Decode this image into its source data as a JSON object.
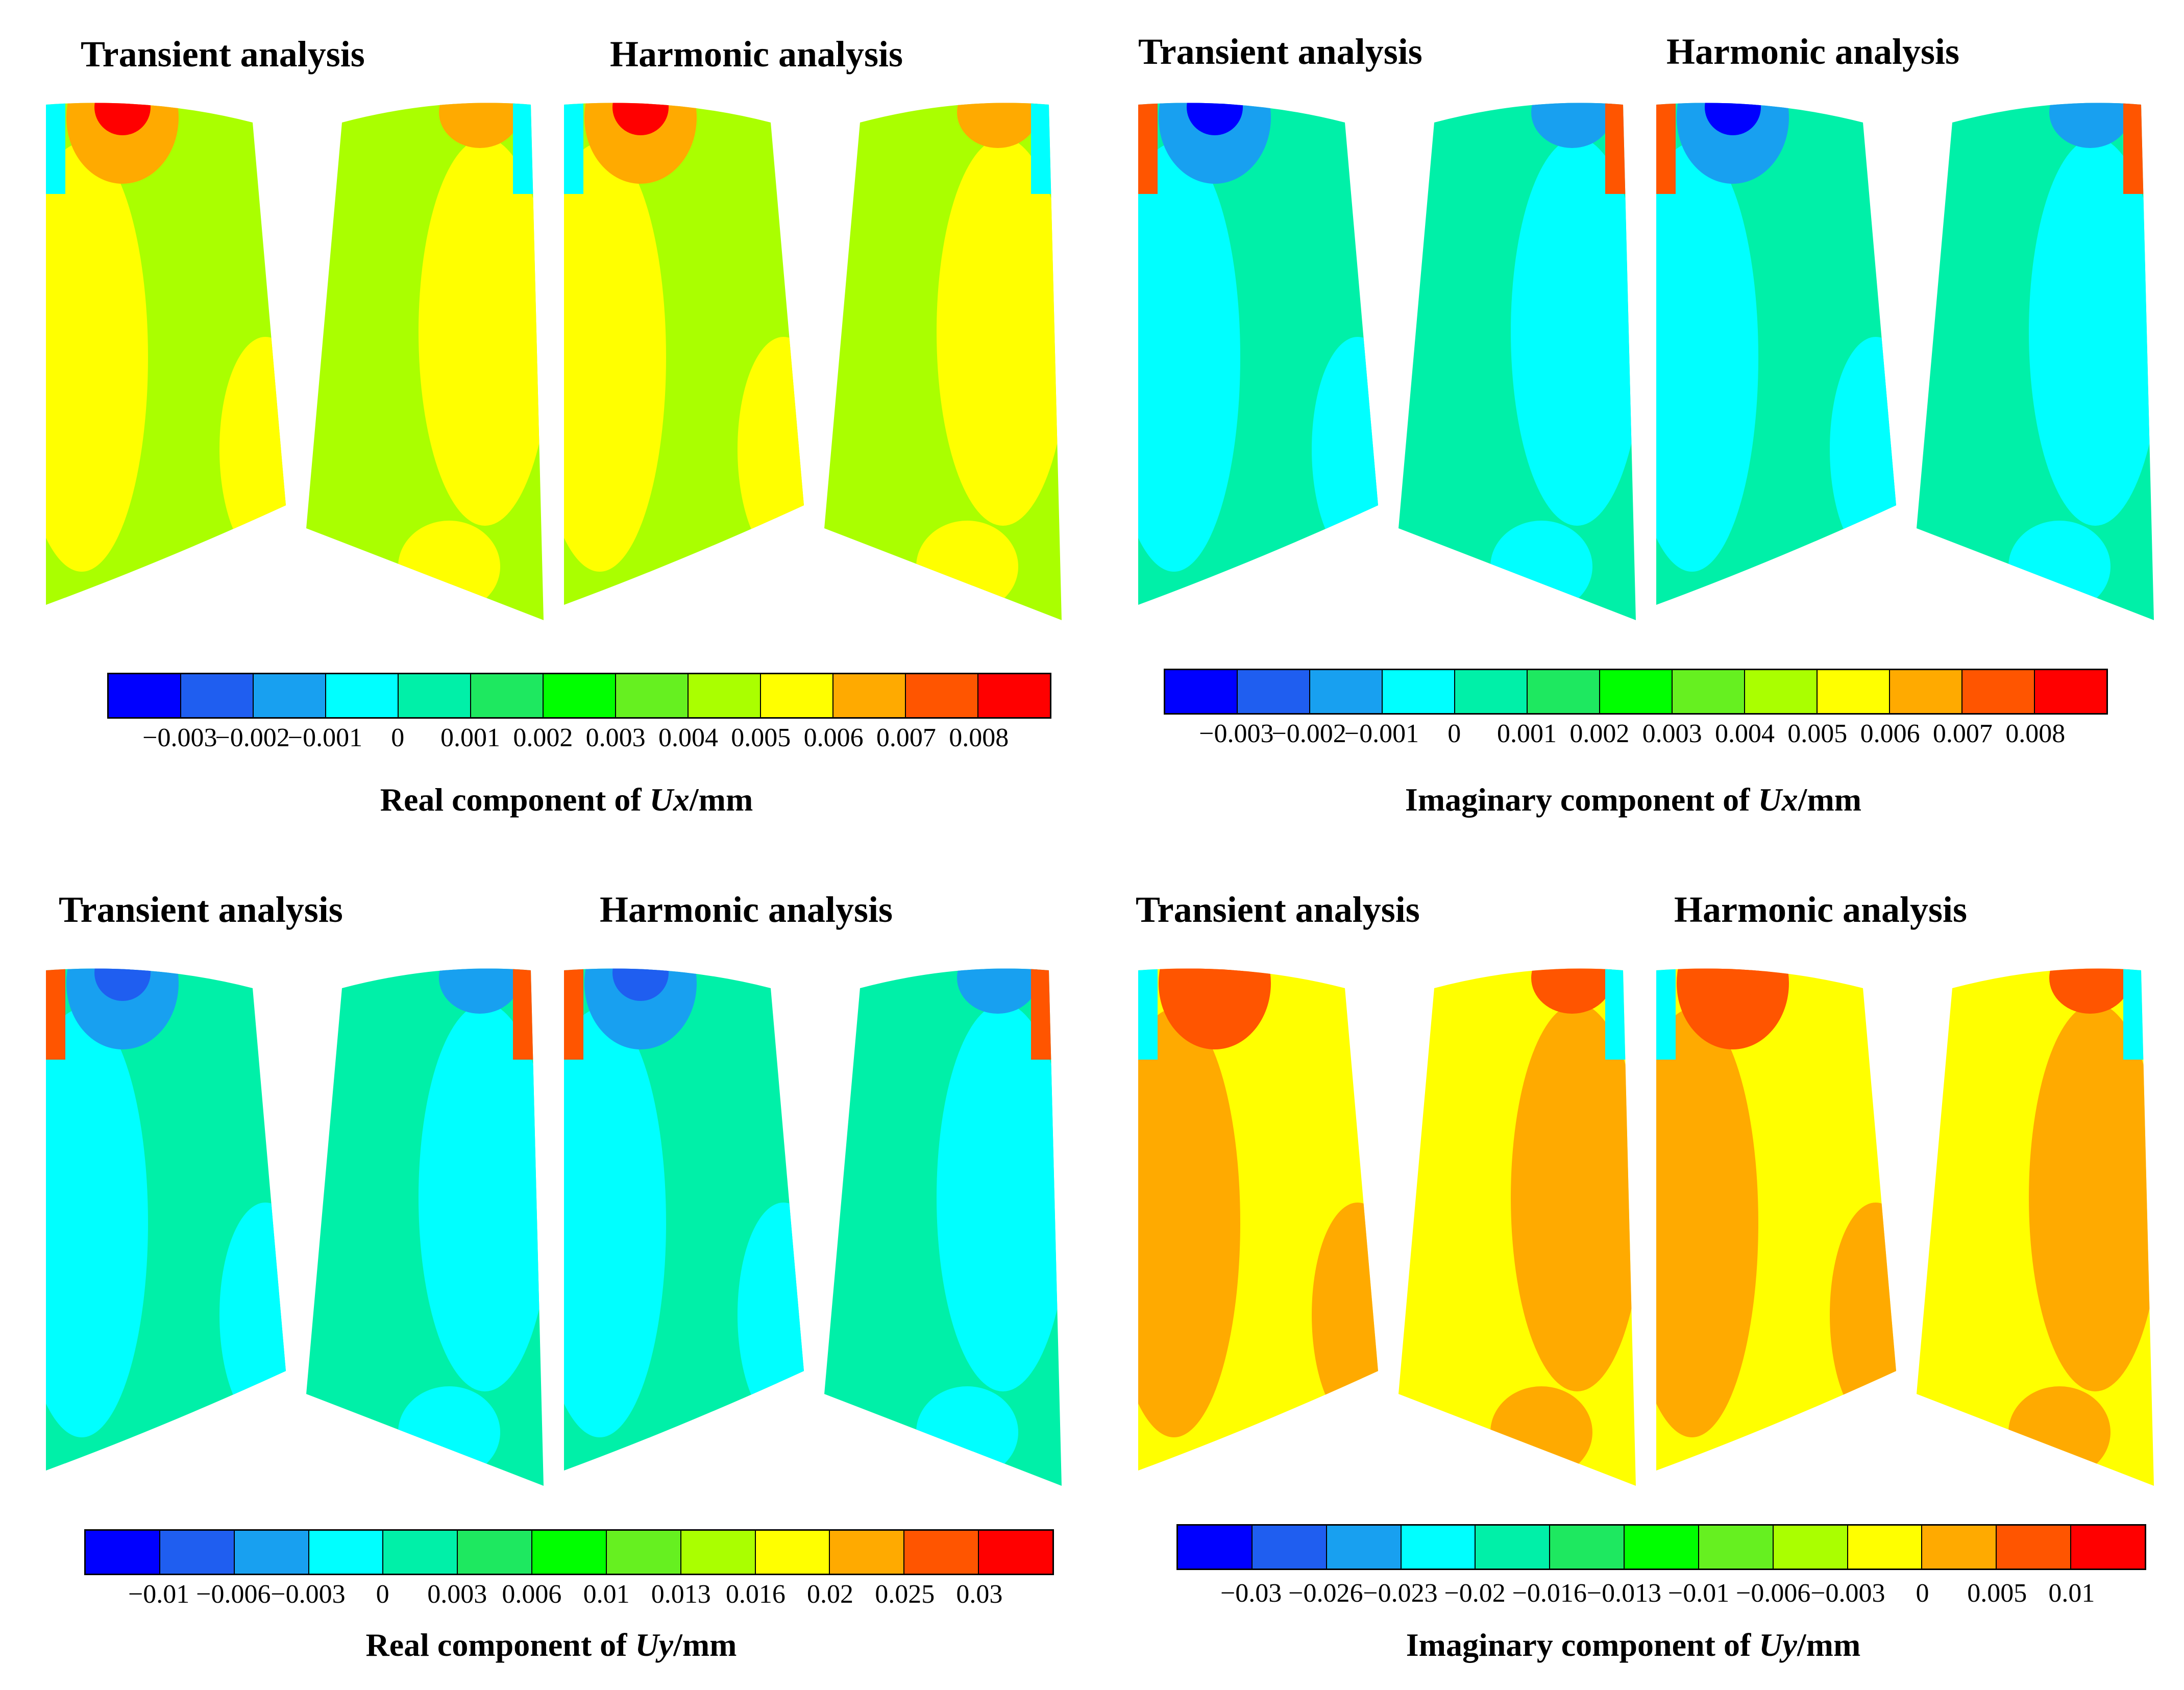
{
  "colormap": [
    "#0000ff",
    "#1f5ef0",
    "#18a0f0",
    "#00ffff",
    "#00f0a8",
    "#1ee860",
    "#00ff00",
    "#66f020",
    "#aaff00",
    "#ffff00",
    "#ffaa00",
    "#ff5500",
    "#ff0000"
  ],
  "panels": [
    {
      "id": "real-ux",
      "left_title": "Transient analysis",
      "right_title": "Harmonic analysis",
      "ticks": [
        "−0.003",
        "−0.002",
        "−0.001",
        "0",
        "0.001",
        "0.002",
        "0.003",
        "0.004",
        "0.005",
        "0.006",
        "0.007",
        "0.008"
      ],
      "caption_prefix": "Real component of ",
      "caption_var": "Ux",
      "caption_suffix": "/mm",
      "base": "#aaff00",
      "region": "#ffff00",
      "hot": "#ffaa00",
      "core": "#ff0000",
      "edge": "#00ffff"
    },
    {
      "id": "imag-ux",
      "left_title": "Transient analysis",
      "right_title": "Harmonic analysis",
      "ticks": [
        "−0.003",
        "−0.002",
        "−0.001",
        "0",
        "0.001",
        "0.002",
        "0.003",
        "0.004",
        "0.005",
        "0.006",
        "0.007",
        "0.008"
      ],
      "caption_prefix": "Imaginary component of ",
      "caption_var": "Ux",
      "caption_suffix": "/mm",
      "base": "#00f0a8",
      "region": "#00ffff",
      "hot": "#18a0f0",
      "core": "#0000ff",
      "edge": "#ff5500"
    },
    {
      "id": "real-uy",
      "left_title": "Transient analysis",
      "right_title": "Harmonic analysis",
      "ticks": [
        "−0.01",
        "−0.006",
        "−0.003",
        "0",
        "0.003",
        "0.006",
        "0.01",
        "0.013",
        "0.016",
        "0.02",
        "0.025",
        "0.03"
      ],
      "caption_prefix": "Real component of ",
      "caption_var": "Uy",
      "caption_suffix": "/mm",
      "base": "#00f0a8",
      "region": "#00ffff",
      "hot": "#18a0f0",
      "core": "#1f5ef0",
      "edge": "#ff5500"
    },
    {
      "id": "imag-uy",
      "left_title": "Transient analysis",
      "right_title": "Harmonic analysis",
      "ticks": [
        "−0.03",
        "−0.026",
        "−0.023",
        "−0.02",
        "−0.016",
        "−0.013",
        "−0.01",
        "−0.006",
        "−0.003",
        "0",
        "0.005",
        "0.01"
      ],
      "caption_prefix": "Imaginary component of ",
      "caption_var": "Uy",
      "caption_suffix": "/mm",
      "base": "#ffff00",
      "region": "#ffaa00",
      "hot": "#ff5500",
      "core": "#ff5500",
      "edge": "#00ffff"
    }
  ]
}
